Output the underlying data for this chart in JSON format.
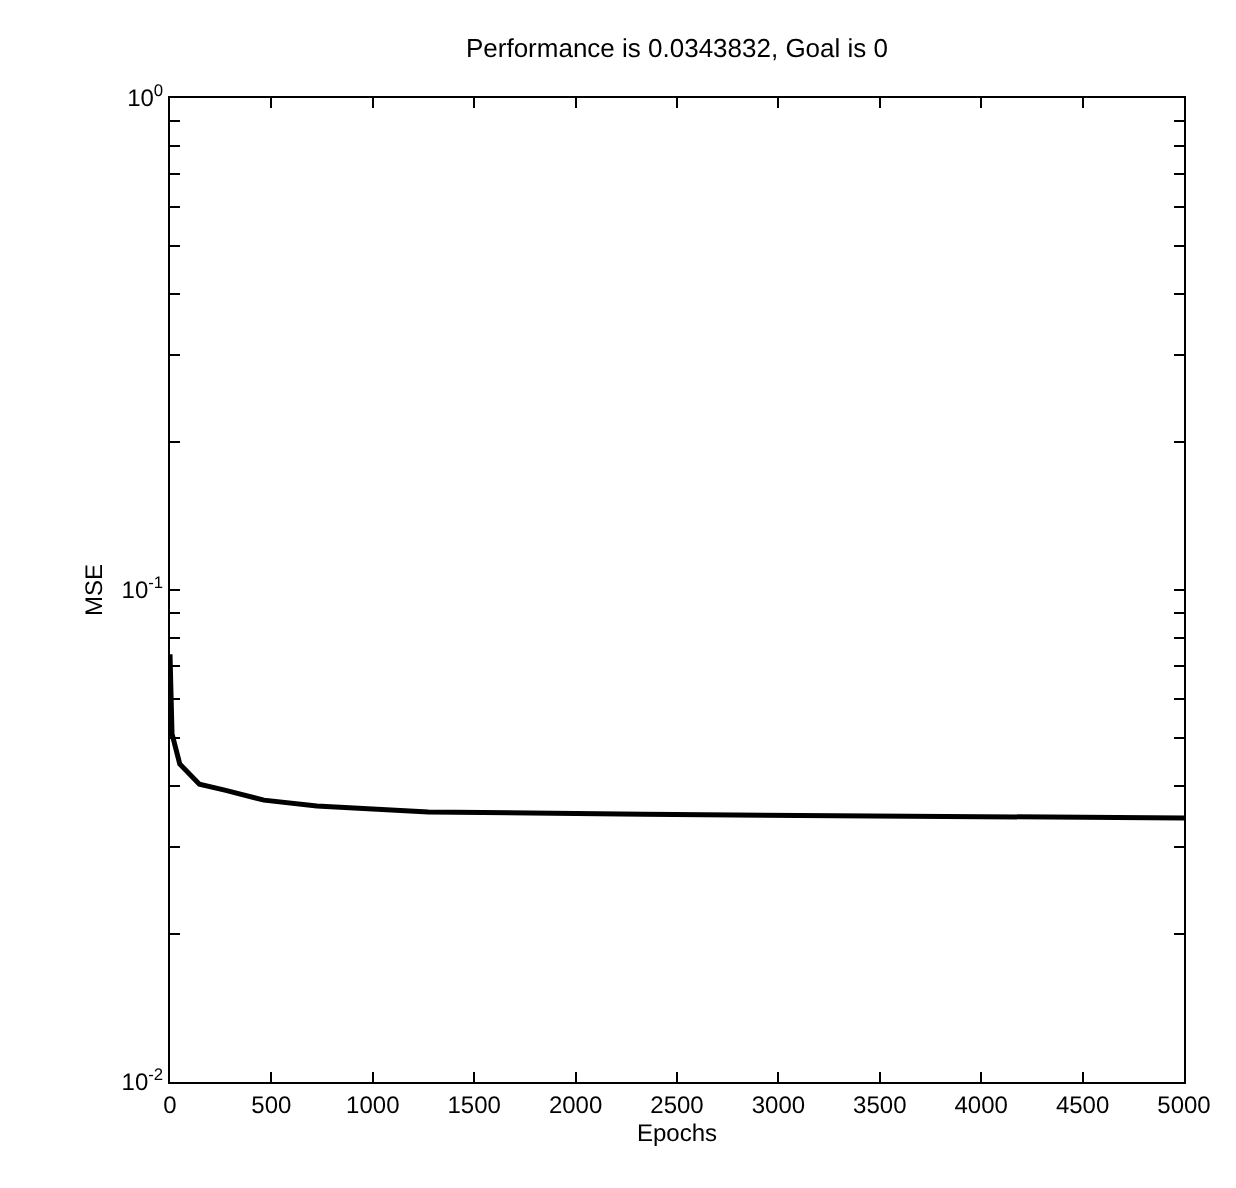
{
  "chart_data": {
    "type": "line",
    "title": "Performance is 0.0343832, Goal is 0",
    "xlabel": "Epochs",
    "ylabel": "MSE",
    "log": "y",
    "x": [
      0,
      10,
      48,
      145,
      270,
      463,
      724,
      1274,
      2336,
      5000
    ],
    "series": [
      {
        "color": "#000000",
        "values": [
          0.074,
          0.051,
          0.0443,
          0.0403,
          0.0392,
          0.0374,
          0.0364,
          0.0354,
          0.035,
          0.0344
        ]
      }
    ],
    "xlim": [
      0,
      5000
    ],
    "xticks": [
      0,
      500,
      1000,
      1500,
      2000,
      2500,
      3000,
      3500,
      4000,
      4500,
      5000
    ],
    "ylim": [
      0.01,
      1
    ],
    "yticks": [
      {
        "value": 0.01,
        "label": "10$^{-2}$"
      },
      {
        "value": 0.02,
        "label": null
      },
      {
        "value": 0.03,
        "label": null
      },
      {
        "value": 0.04,
        "label": null
      },
      {
        "value": 0.05,
        "label": null
      },
      {
        "value": 0.06,
        "label": null
      },
      {
        "value": 0.07,
        "label": null
      },
      {
        "value": 0.08,
        "label": null
      },
      {
        "value": 0.09,
        "label": null
      },
      {
        "value": 0.1,
        "label": "10$^{-1}$"
      },
      {
        "value": 0.2,
        "label": null
      },
      {
        "value": 0.3,
        "label": null
      },
      {
        "value": 0.4,
        "label": null
      },
      {
        "value": 0.5,
        "label": null
      },
      {
        "value": 0.6,
        "label": null
      },
      {
        "value": 0.7,
        "label": null
      },
      {
        "value": 0.8,
        "label": null
      },
      {
        "value": 0.9,
        "label": null
      },
      {
        "value": 1,
        "label": "10$^{0}$"
      }
    ],
    "legend": false,
    "marker": "none",
    "line_style": "solid"
  }
}
